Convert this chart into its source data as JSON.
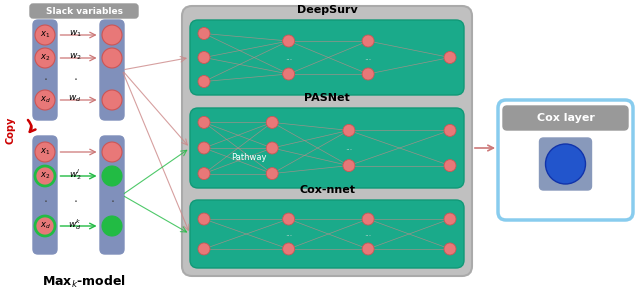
{
  "slack_label": "Slack variables",
  "slack_label_bg": "#999999",
  "maxk_label": "Max$_k$-model",
  "copy_label": "Copy",
  "node_color_red": "#e87878",
  "node_color_green": "#22bb44",
  "node_stroke_green": "#22bb44",
  "column_bg_color": "#8090bb",
  "teal_color": "#1aaa8a",
  "gray_outer": "#c0c0c0",
  "deepsurv_label": "DeepSurv",
  "pasnet_label": "PASNet",
  "coxnnet_label": "Cox-nnet",
  "pathway_label": "Pathway",
  "coxlayer_label": "Cox layer",
  "cox_box_edge": "#88ccee",
  "cox_inner_bg": "#8899bb",
  "cox_circle_color": "#2255cc"
}
